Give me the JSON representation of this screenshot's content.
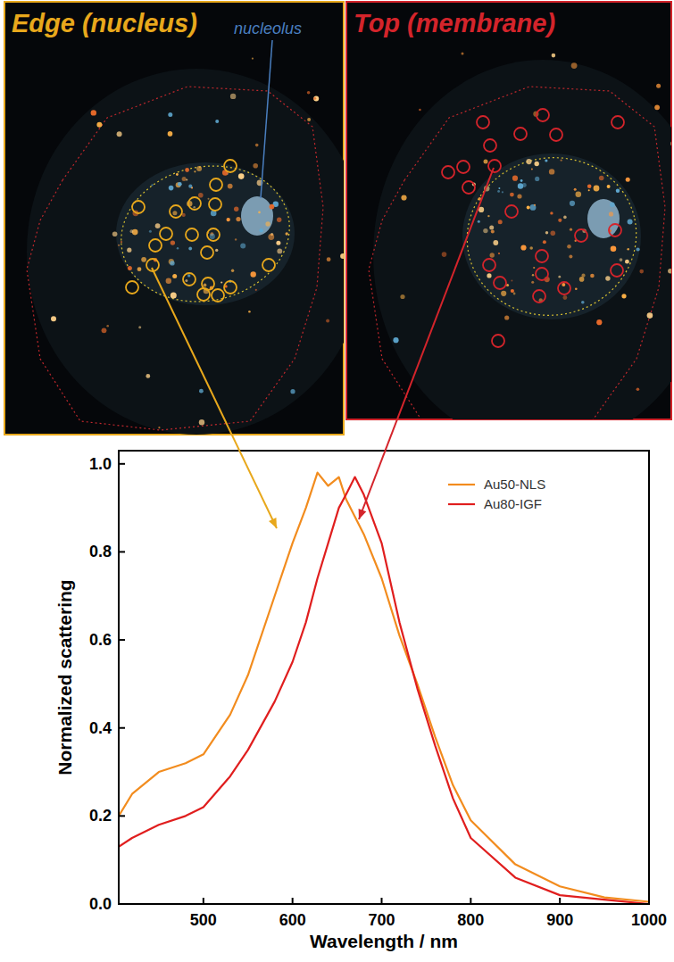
{
  "images": [
    {
      "title": "Edge (nucleus)",
      "annotation": "nucleolus",
      "color": "#e8a81c"
    },
    {
      "title": "Top (membrane)",
      "color": "#d4242b"
    }
  ],
  "chart_data": {
    "type": "line",
    "xlabel": "Wavelength / nm",
    "ylabel": "Normalized scattering",
    "x": [
      405,
      420,
      450,
      480,
      500,
      530,
      550,
      580,
      600,
      615,
      628,
      640,
      652,
      660,
      670,
      680,
      700,
      720,
      740,
      760,
      780,
      800,
      850,
      900,
      950,
      1000
    ],
    "series": [
      {
        "name": "Au50-NLS",
        "color": "#f28c1e",
        "values": [
          0.2,
          0.25,
          0.3,
          0.32,
          0.34,
          0.43,
          0.52,
          0.7,
          0.82,
          0.9,
          0.98,
          0.95,
          0.97,
          0.92,
          0.88,
          0.84,
          0.74,
          0.61,
          0.5,
          0.38,
          0.27,
          0.19,
          0.09,
          0.04,
          0.015,
          0.005
        ]
      },
      {
        "name": "Au80-IGF",
        "color": "#e01e1e",
        "values": [
          0.13,
          0.15,
          0.18,
          0.2,
          0.22,
          0.29,
          0.35,
          0.46,
          0.55,
          0.64,
          0.74,
          0.82,
          0.9,
          0.93,
          0.97,
          0.93,
          0.82,
          0.64,
          0.49,
          0.36,
          0.24,
          0.15,
          0.06,
          0.02,
          0.01,
          0.0
        ]
      }
    ],
    "xlim": [
      405,
      1000
    ],
    "ylim": [
      0,
      1.03
    ],
    "xticks": [
      500,
      600,
      700,
      800,
      900,
      1000
    ],
    "yticks": [
      {
        "value": 0,
        "label": "0.0"
      },
      0.2,
      0.4,
      0.6,
      0.8,
      {
        "value": 1,
        "label": "1.0"
      }
    ],
    "legend": "upper right",
    "grid": false
  }
}
